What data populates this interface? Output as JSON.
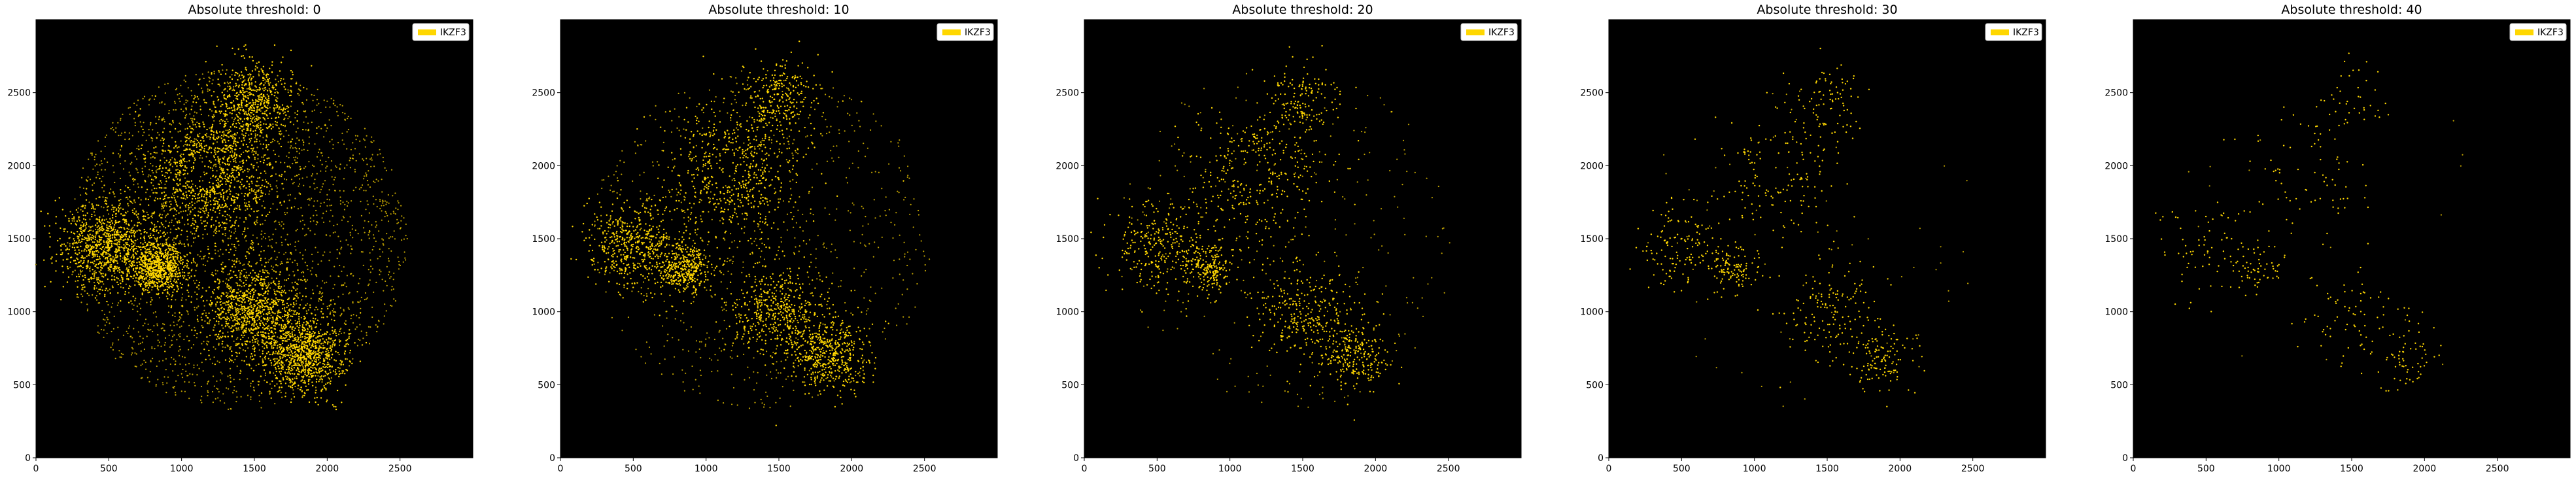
{
  "chart_data": [
    {
      "type": "scatter",
      "title": "Absolute threshold: 0",
      "threshold": 0,
      "legend": {
        "label": "IKZF3",
        "color": "#FFD700",
        "placement": "top-right"
      },
      "background": "#000000",
      "xlim": [
        0,
        3000
      ],
      "ylim": [
        0,
        3000
      ],
      "xticks": [
        0,
        500,
        1000,
        1500,
        2000,
        2500
      ],
      "yticks": [
        0,
        500,
        1000,
        1500,
        2000,
        2500
      ],
      "density": 1.0
    },
    {
      "type": "scatter",
      "title": "Absolute threshold: 10",
      "threshold": 10,
      "legend": {
        "label": "IKZF3",
        "color": "#FFD700",
        "placement": "top-right"
      },
      "background": "#000000",
      "xlim": [
        0,
        3000
      ],
      "ylim": [
        0,
        3000
      ],
      "xticks": [
        0,
        500,
        1000,
        1500,
        2000,
        2500
      ],
      "yticks": [
        0,
        500,
        1000,
        1500,
        2000,
        2500
      ],
      "density": 0.55
    },
    {
      "type": "scatter",
      "title": "Absolute threshold: 20",
      "threshold": 20,
      "legend": {
        "label": "IKZF3",
        "color": "#FFD700",
        "placement": "top-right"
      },
      "background": "#000000",
      "xlim": [
        0,
        3000
      ],
      "ylim": [
        0,
        3000
      ],
      "xticks": [
        0,
        500,
        1000,
        1500,
        2000,
        2500
      ],
      "yticks": [
        0,
        500,
        1000,
        1500,
        2000,
        2500
      ],
      "density": 0.32
    },
    {
      "type": "scatter",
      "title": "Absolute threshold: 30",
      "threshold": 30,
      "legend": {
        "label": "IKZF3",
        "color": "#FFD700",
        "placement": "top-right"
      },
      "background": "#000000",
      "xlim": [
        0,
        3000
      ],
      "ylim": [
        0,
        3000
      ],
      "xticks": [
        0,
        500,
        1000,
        1500,
        2000,
        2500
      ],
      "yticks": [
        0,
        500,
        1000,
        1500,
        2000,
        2500
      ],
      "density": 0.16
    },
    {
      "type": "scatter",
      "title": "Absolute threshold: 40",
      "threshold": 40,
      "legend": {
        "label": "IKZF3",
        "color": "#FFD700",
        "placement": "top-right"
      },
      "background": "#000000",
      "xlim": [
        0,
        3000
      ],
      "ylim": [
        0,
        3000
      ],
      "xticks": [
        0,
        500,
        1000,
        1500,
        2000,
        2500
      ],
      "yticks": [
        0,
        500,
        1000,
        1500,
        2000,
        2500
      ],
      "density": 0.08
    }
  ],
  "tissue_regions": [
    {
      "cx": 1200,
      "cy": 1950,
      "r": 430,
      "weight": 1.6
    },
    {
      "cx": 500,
      "cy": 1450,
      "r": 320,
      "weight": 1.3
    },
    {
      "cx": 850,
      "cy": 1300,
      "r": 180,
      "weight": 1.0
    },
    {
      "cx": 1500,
      "cy": 1000,
      "r": 330,
      "weight": 1.3
    },
    {
      "cx": 1850,
      "cy": 700,
      "r": 260,
      "weight": 1.2
    },
    {
      "cx": 1500,
      "cy": 2450,
      "r": 260,
      "weight": 0.7
    }
  ]
}
